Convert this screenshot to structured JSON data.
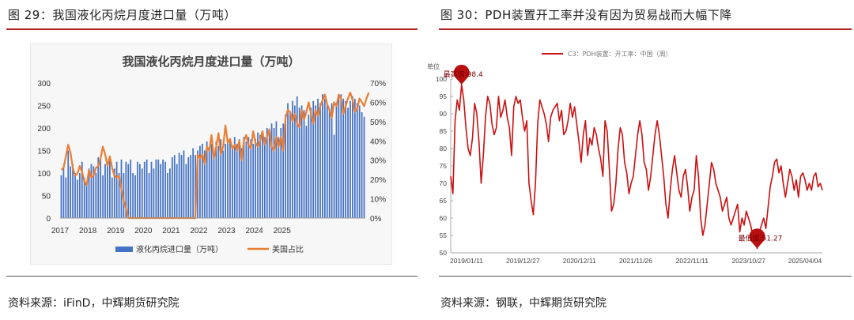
{
  "left_figure": {
    "caption": "图 29：我国液化丙烷月度进口量（万吨）",
    "source": "资料来源：iFinD，中辉期货研究院"
  },
  "right_figure": {
    "caption": "图 30：PDH装置开工率并没有因为贸易战而大幅下降",
    "source": "资料来源：钢联，中辉期货研究院"
  },
  "colors": {
    "rule": "#b22222",
    "bar": "#4472c4",
    "share_line": "#ed7d31",
    "rate_line": "#cc1010",
    "plot_bg_left": "#f7f7f7"
  },
  "chart_data": [
    {
      "type": "bar",
      "title": "我国液化丙烷月度进口量（万吨）",
      "x_tick_labels": [
        "2017",
        "2018",
        "2019",
        "2020",
        "2021",
        "2022",
        "2023",
        "2024",
        "2025"
      ],
      "y_left_ticks": [
        "0",
        "50",
        "100",
        "150",
        "200",
        "250",
        "300"
      ],
      "y_right_ticks": [
        "0%",
        "10%",
        "20%",
        "30%",
        "40%",
        "50%",
        "60%",
        "70%"
      ],
      "ylim": [
        0,
        300
      ],
      "ylim_right": [
        0,
        0.7
      ],
      "grid": false,
      "legend_position": "bottom",
      "series": [
        {
          "name": "液化丙烷进口量（万吨）",
          "type": "bar",
          "axis": "left",
          "values": [
            95,
            110,
            90,
            150,
            115,
            120,
            100,
            85,
            100,
            125,
            90,
            80,
            110,
            120,
            115,
            100,
            135,
            130,
            95,
            120,
            115,
            130,
            90,
            110,
            125,
            100,
            130,
            100,
            125,
            120,
            130,
            100,
            95,
            125,
            120,
            110,
            125,
            130,
            100,
            125,
            110,
            130,
            130,
            120,
            130,
            125,
            100,
            110,
            135,
            140,
            120,
            145,
            140,
            150,
            120,
            135,
            140,
            155,
            140,
            150,
            160,
            165,
            150,
            170,
            155,
            165,
            145,
            170,
            160,
            175,
            150,
            165,
            175,
            170,
            160,
            180,
            165,
            175,
            155,
            180,
            170,
            180,
            175,
            165,
            175,
            190,
            185,
            190,
            180,
            200,
            190,
            210,
            200,
            215,
            180,
            200,
            210,
            230,
            255,
            235,
            260,
            250,
            270,
            245,
            250,
            240,
            205,
            230,
            245,
            260,
            250,
            265,
            255,
            275,
            265,
            250,
            240,
            255,
            185,
            255,
            270,
            275,
            265,
            260,
            245,
            260,
            270,
            265,
            255,
            250,
            235,
            225
          ]
        },
        {
          "name": "美国占比",
          "type": "line",
          "axis": "right",
          "values": [
            0.25,
            0.26,
            0.32,
            0.38,
            0.34,
            0.26,
            0.22,
            0.23,
            0.27,
            0.24,
            0.19,
            0.17,
            0.25,
            0.21,
            0.22,
            0.26,
            0.27,
            0.31,
            0.37,
            0.33,
            0.27,
            0.32,
            0.26,
            0.22,
            0.21,
            0.22,
            0.15,
            0.09,
            0.05,
            0,
            0,
            0,
            0,
            0,
            0,
            0,
            0,
            0,
            0,
            0,
            0,
            0,
            0,
            0,
            0,
            0,
            0,
            0,
            0,
            0,
            0,
            0,
            0,
            0,
            0,
            0,
            0,
            0,
            0,
            0.33,
            0.31,
            0.33,
            0.28,
            0.37,
            0.35,
            0.43,
            0.31,
            0.37,
            0.44,
            0.33,
            0.37,
            0.48,
            0.39,
            0.41,
            0.36,
            0.38,
            0.35,
            0.4,
            0.3,
            0.4,
            0.43,
            0.38,
            0.36,
            0.45,
            0.39,
            0.37,
            0.4,
            0.45,
            0.38,
            0.42,
            0.46,
            0.37,
            0.35,
            0.42,
            0.37,
            0.42,
            0.35,
            0.52,
            0.56,
            0.55,
            0.5,
            0.54,
            0.49,
            0.47,
            0.56,
            0.51,
            0.55,
            0.6,
            0.54,
            0.49,
            0.56,
            0.53,
            0.58,
            0.61,
            0.64,
            0.59,
            0.56,
            0.52,
            0.6,
            0.58,
            0.64,
            0.62,
            0.54,
            0.58,
            0.62,
            0.65,
            0.61,
            0.55,
            0.57,
            0.62,
            0.6,
            0.58,
            0.62,
            0.65
          ]
        }
      ]
    },
    {
      "type": "line",
      "title": "",
      "ylabel": "单位",
      "x_tick_labels": [
        "2019/01/11",
        "2019/12/27",
        "2020/12/11",
        "2021/11/26",
        "2022/11/11",
        "2023/10/27",
        "2025/04/04"
      ],
      "y_ticks": [
        "50",
        "55",
        "60",
        "65",
        "70",
        "75",
        "80",
        "85",
        "90",
        "95",
        "100"
      ],
      "ylim": [
        50,
        100
      ],
      "grid": false,
      "legend_position": "top",
      "annotations": {
        "max_label": "最高值:98.4",
        "min_label": "最低值:51.27"
      },
      "series": [
        {
          "name": "C3：PDH装置：开工率：中国（周）",
          "values": [
            72,
            67,
            88,
            94,
            91,
            98.4,
            94,
            86,
            80,
            78,
            83,
            93,
            90,
            82,
            70,
            78,
            89,
            95,
            93,
            87,
            84,
            86,
            95,
            89,
            91,
            94,
            89,
            86,
            78,
            92,
            95,
            93,
            94,
            89,
            85,
            88,
            70,
            65,
            61,
            70,
            87,
            94,
            92,
            90,
            87,
            82,
            89,
            91,
            92,
            93,
            88,
            91,
            84,
            85,
            88,
            93,
            89,
            92,
            87,
            82,
            76,
            84,
            88,
            78,
            83,
            81,
            86,
            84,
            80,
            77,
            72,
            88,
            85,
            74,
            62,
            64,
            70,
            80,
            86,
            84,
            76,
            73,
            67,
            70,
            72,
            78,
            84,
            88,
            84,
            76,
            74,
            68,
            72,
            78,
            84,
            88,
            84,
            78,
            72,
            64,
            60,
            68,
            74,
            78,
            73,
            68,
            66,
            72,
            74,
            69,
            62,
            66,
            68,
            78,
            72,
            60,
            55,
            58,
            64,
            70,
            76,
            74,
            70,
            68,
            66,
            62,
            64,
            66,
            60,
            58,
            60,
            62,
            64,
            56,
            60,
            58,
            62,
            60,
            58,
            55,
            54,
            51.27,
            56,
            58,
            60,
            57,
            63,
            69,
            72,
            76,
            77,
            73,
            75,
            70,
            66,
            70,
            74,
            72,
            68,
            71,
            66,
            72,
            73,
            71,
            68,
            70,
            68,
            72,
            73,
            69,
            70,
            68
          ]
        }
      ]
    }
  ]
}
